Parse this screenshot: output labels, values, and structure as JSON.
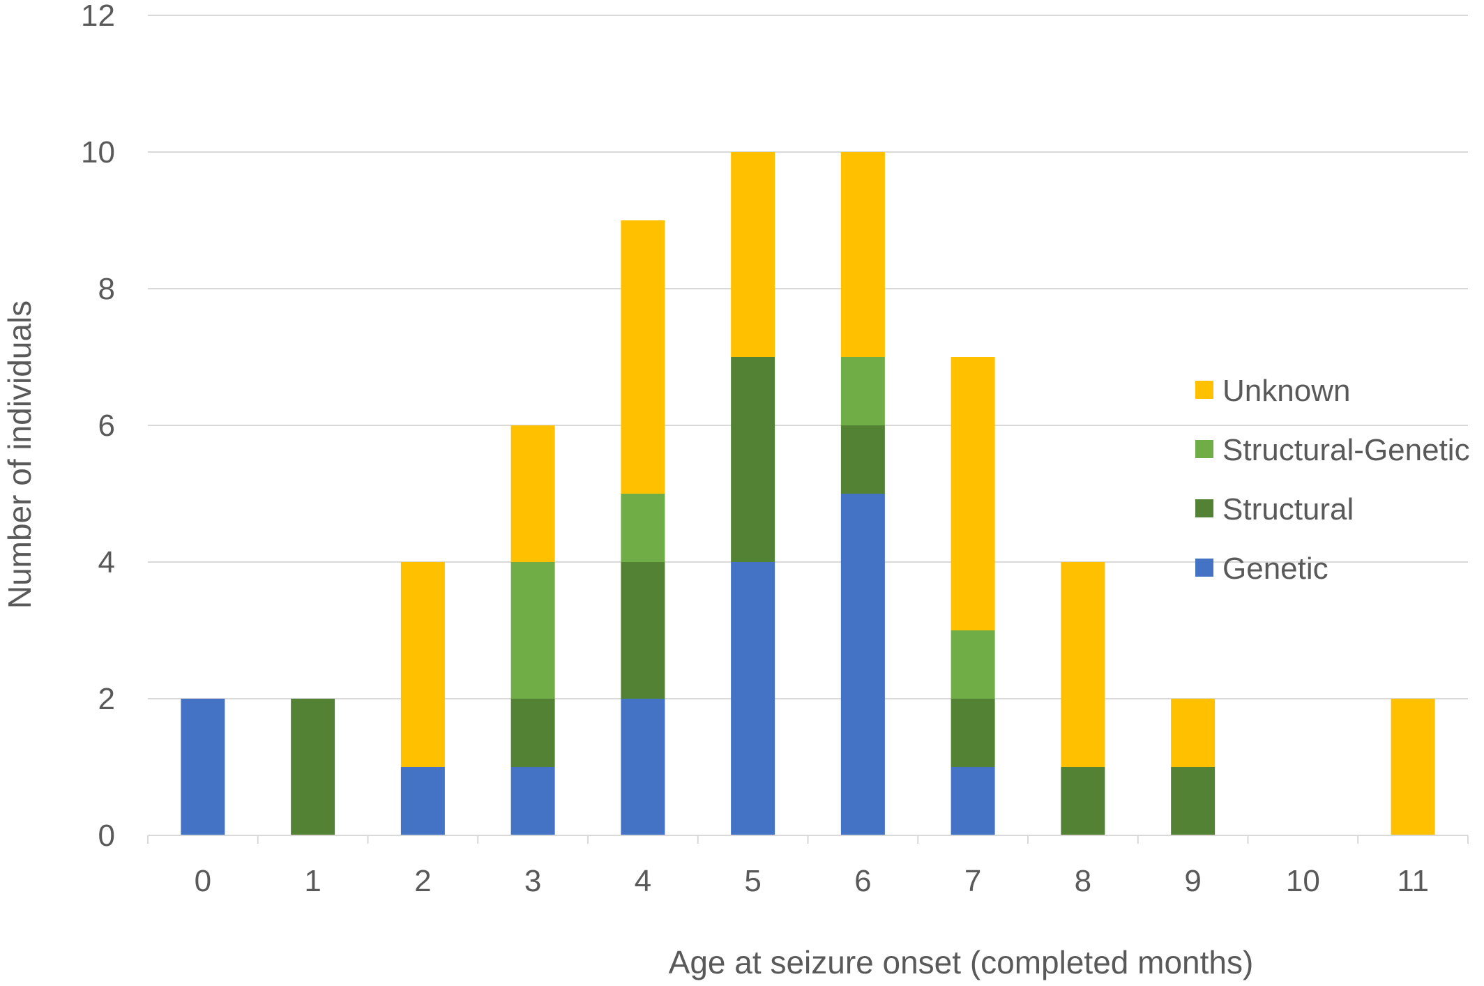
{
  "chart_data": {
    "type": "bar",
    "stacked": true,
    "title": "",
    "xlabel": "Age at seizure onset (completed months)",
    "ylabel": "Number of individuals",
    "ylim": [
      0,
      12
    ],
    "yticks": [
      0,
      2,
      4,
      6,
      8,
      10,
      12
    ],
    "grid": true,
    "legend_position": "right",
    "categories": [
      "0",
      "1",
      "2",
      "3",
      "4",
      "5",
      "6",
      "7",
      "8",
      "9",
      "10",
      "11"
    ],
    "series": [
      {
        "name": "Genetic",
        "color": "#4472C4",
        "values": [
          2,
          0,
          1,
          1,
          2,
          4,
          5,
          1,
          0,
          0,
          0,
          0
        ]
      },
      {
        "name": "Structural",
        "color": "#548235",
        "values": [
          0,
          2,
          0,
          1,
          2,
          3,
          1,
          1,
          1,
          1,
          0,
          0
        ]
      },
      {
        "name": "Structural-Genetic",
        "color": "#70AD47",
        "values": [
          0,
          0,
          0,
          2,
          1,
          0,
          1,
          1,
          0,
          0,
          0,
          0
        ]
      },
      {
        "name": "Unknown",
        "color": "#FFC000",
        "values": [
          0,
          0,
          3,
          2,
          4,
          3,
          3,
          4,
          3,
          1,
          0,
          2
        ]
      }
    ],
    "legend_order": [
      "Unknown",
      "Structural-Genetic",
      "Structural",
      "Genetic"
    ]
  }
}
